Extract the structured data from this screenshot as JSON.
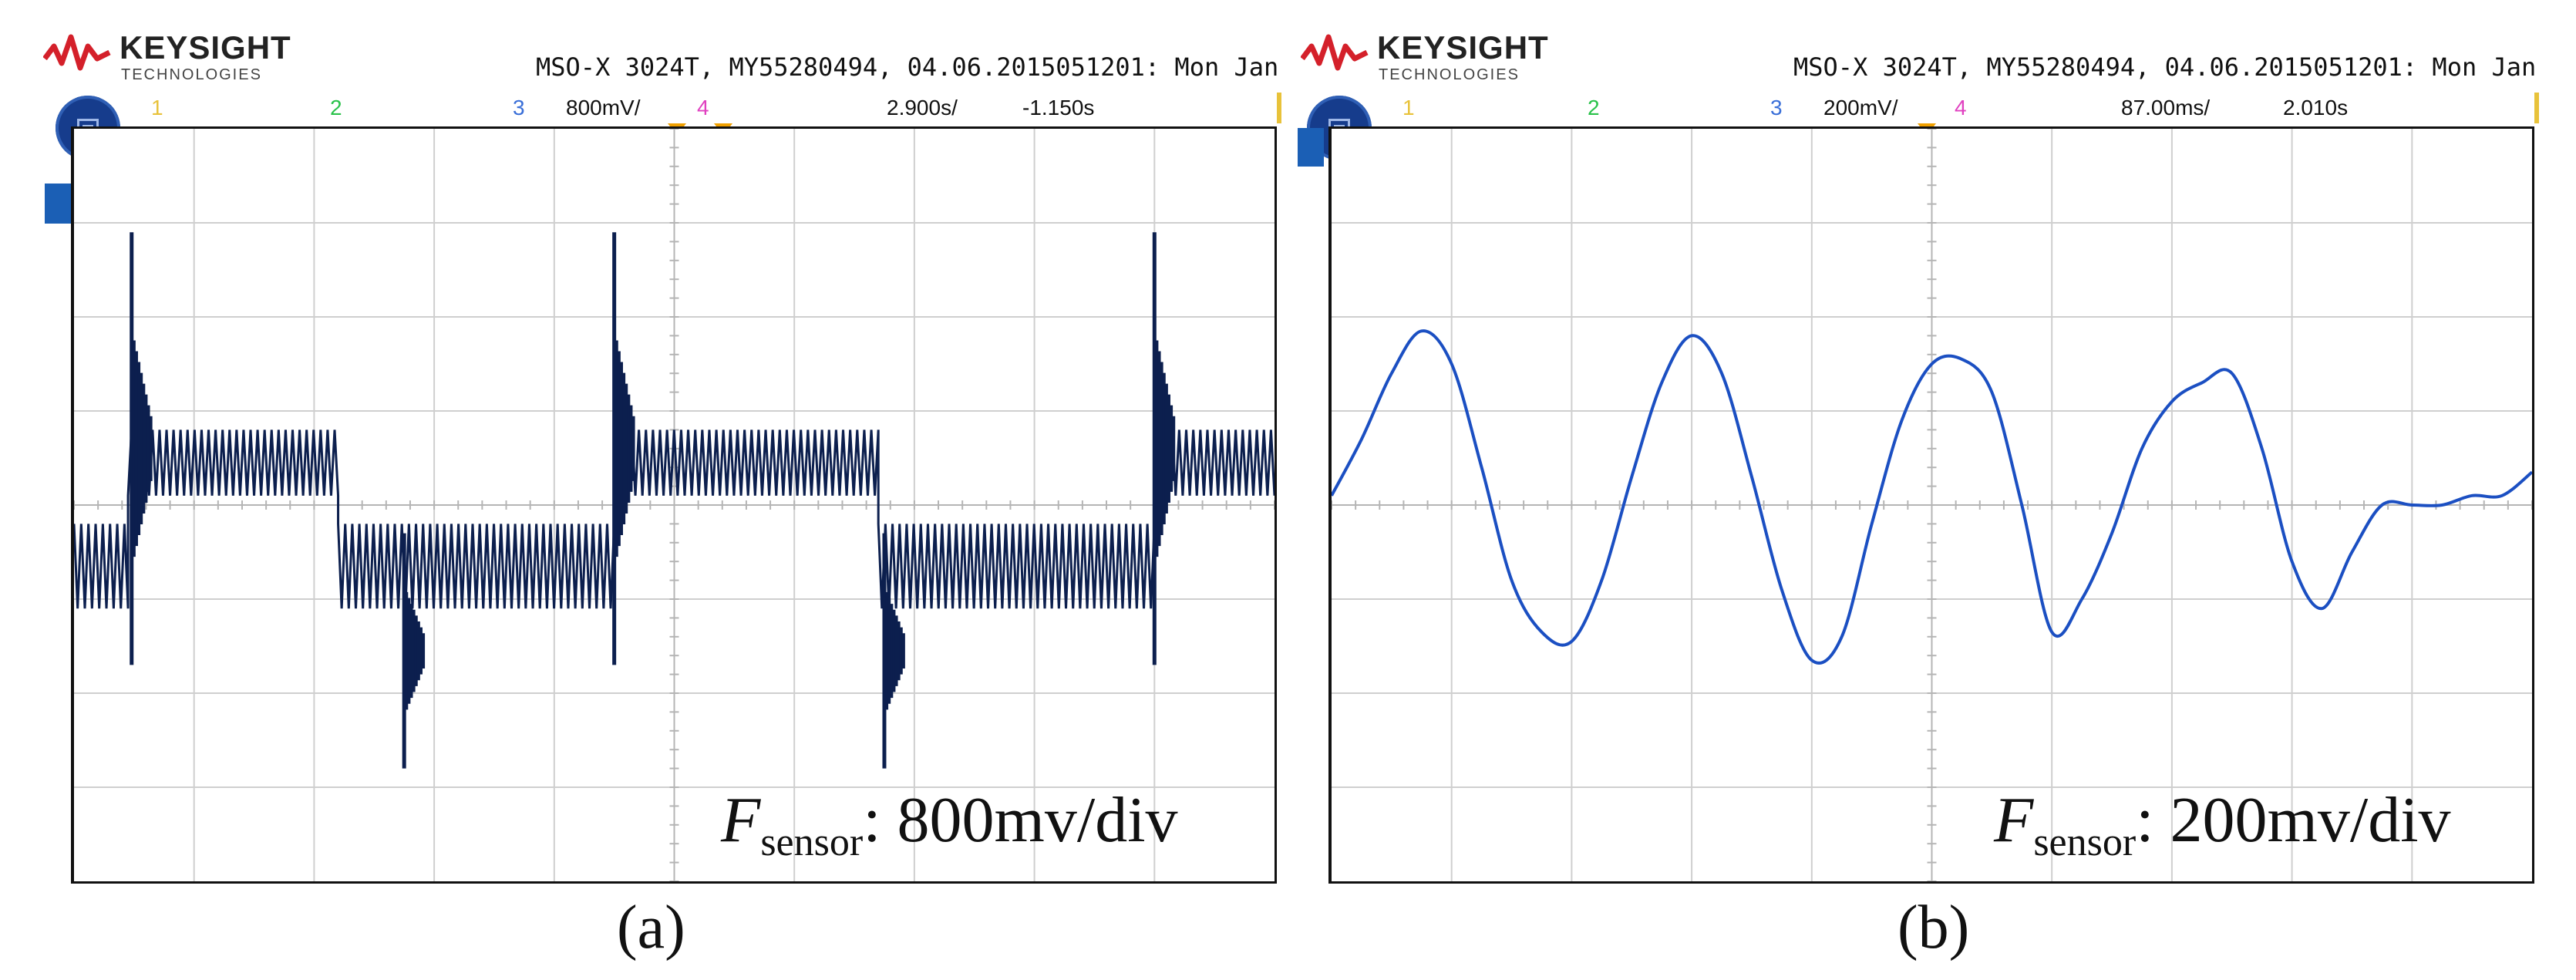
{
  "colors": {
    "ch1": "#e8c23a",
    "ch2": "#29c24a",
    "ch3": "#3a6fd8",
    "ch4": "#e040c0",
    "trace_a": "#0c1f4e",
    "trace_b": "#1b4fc2",
    "grid": "#cfcfcf",
    "trigger": "#f0a000",
    "logo_red": "#d4202a"
  },
  "icons": {
    "logo": "keysight-wave-logo",
    "menu": "menu-circle-icon",
    "channel": "channel-3-marker-icon",
    "trigger": "trigger-marker-icon"
  },
  "panels": [
    {
      "brand": "KEYSIGHT",
      "brand_sub": "TECHNOLOGIES",
      "info": "MSO-X 3024T, MY55280494, 04.06.2015051201: Mon Jan",
      "channels": [
        "1",
        "2",
        "3",
        "4"
      ],
      "scale": "800mV/",
      "timebase": "2.900s/",
      "delay": "-1.150s",
      "annotation_symbol": "F",
      "annotation_sub": "sensor",
      "annotation_value": ": 800mv/div",
      "caption": "(a)"
    },
    {
      "brand": "KEYSIGHT",
      "brand_sub": "TECHNOLOGIES",
      "info": "MSO-X 3024T, MY55280494, 04.06.2015051201: Mon Jan",
      "channels": [
        "1",
        "2",
        "3",
        "4"
      ],
      "scale": "200mV/",
      "timebase": "87.00ms/",
      "delay": "2.010s",
      "annotation_symbol": "F",
      "annotation_sub": "sensor",
      "annotation_value": ": 200mv/div",
      "caption": "(b)"
    }
  ],
  "chart_data": [
    {
      "type": "line",
      "title": "",
      "xlabel": "",
      "ylabel": "",
      "x_divisions": 10,
      "y_divisions": 8,
      "ylim": [
        -4,
        4
      ],
      "ylim_units": "divisions",
      "grid": true,
      "series": [
        {
          "description_values": "envelope (div) per segment: [x0, x1, upper, lower]",
          "segments": [
            [
              0.0,
              0.45,
              -0.2,
              -1.1
            ],
            [
              0.45,
              2.2,
              0.8,
              0.1
            ],
            [
              2.2,
              4.5,
              -0.2,
              -1.1
            ],
            [
              4.5,
              6.7,
              0.8,
              0.1
            ],
            [
              6.7,
              9.0,
              -0.2,
              -1.1
            ],
            [
              9.0,
              10.0,
              0.8,
              0.1
            ]
          ],
          "spikes": [
            {
              "x": 0.48,
              "hi": 2.9,
              "lo": -1.7
            },
            {
              "x": 2.75,
              "hi": -0.3,
              "lo": -2.8
            },
            {
              "x": 4.5,
              "hi": 2.9,
              "lo": -1.7
            },
            {
              "x": 6.75,
              "hi": -0.3,
              "lo": -2.8
            },
            {
              "x": 9.0,
              "hi": 2.9,
              "lo": -1.7
            }
          ]
        }
      ]
    },
    {
      "type": "line",
      "title": "",
      "xlabel": "",
      "ylabel": "",
      "x_divisions": 10,
      "y_divisions": 8,
      "ylim": [
        -4,
        4
      ],
      "ylim_units": "divisions",
      "grid": true,
      "series": [
        {
          "x": [
            0.0,
            0.25,
            0.5,
            0.75,
            1.0,
            1.25,
            1.5,
            1.75,
            2.0,
            2.25,
            2.5,
            2.75,
            3.0,
            3.25,
            3.5,
            3.75,
            4.0,
            4.25,
            4.5,
            4.75,
            5.0,
            5.25,
            5.5,
            5.75,
            6.0,
            6.25,
            6.5,
            6.75,
            7.0,
            7.25,
            7.5,
            7.75,
            8.0,
            8.25,
            8.5,
            8.75,
            9.0,
            9.25,
            9.5,
            9.75,
            10.0
          ],
          "y": [
            0.1,
            0.7,
            1.4,
            1.85,
            1.5,
            0.4,
            -0.8,
            -1.35,
            -1.45,
            -0.8,
            0.3,
            1.3,
            1.8,
            1.4,
            0.3,
            -0.9,
            -1.65,
            -1.4,
            -0.2,
            0.9,
            1.5,
            1.55,
            1.2,
            0.0,
            -1.35,
            -1.0,
            -0.3,
            0.6,
            1.1,
            1.3,
            1.4,
            0.6,
            -0.6,
            -1.1,
            -0.5,
            0.0,
            0.0,
            0.0,
            0.1,
            0.1,
            0.35
          ]
        }
      ]
    }
  ]
}
